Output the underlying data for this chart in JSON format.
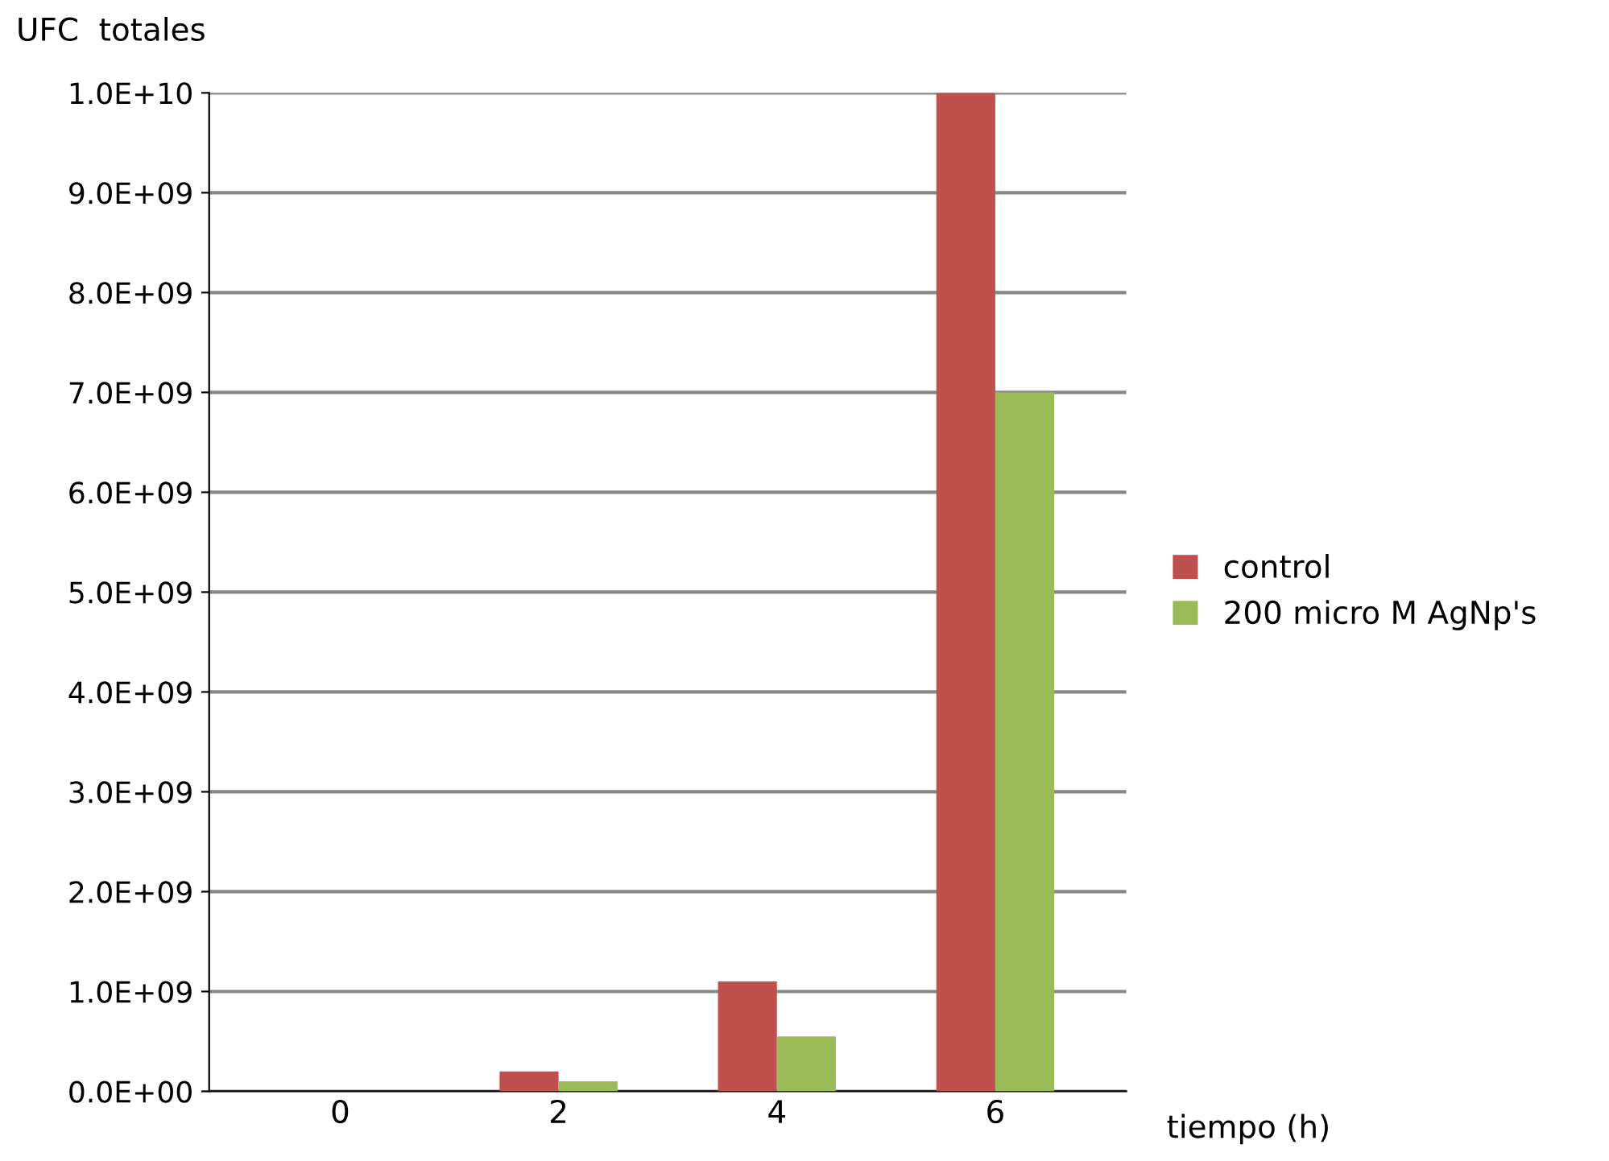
{
  "chart_data": {
    "type": "bar",
    "xlabel": "tiempo (h)",
    "ylabel": "UFC  totales",
    "categories": [
      "0",
      "2",
      "4",
      "6"
    ],
    "series": [
      {
        "name": "control",
        "color": "#c0504d",
        "values": [
          0,
          200000000.0,
          1100000000.0,
          10000000000.0
        ]
      },
      {
        "name": "200 micro M AgNp's",
        "color": "#9bbb59",
        "values": [
          0,
          100000000.0,
          550000000.0,
          7000000000.0
        ]
      }
    ],
    "ylim": [
      0,
      10000000000.0
    ],
    "yticks": [
      {
        "value": 0,
        "label": "0.0E+00"
      },
      {
        "value": 1000000000.0,
        "label": "1.0E+09"
      },
      {
        "value": 2000000000.0,
        "label": "2.0E+09"
      },
      {
        "value": 3000000000.0,
        "label": "3.0E+09"
      },
      {
        "value": 4000000000.0,
        "label": "4.0E+09"
      },
      {
        "value": 5000000000.0,
        "label": "5.0E+09"
      },
      {
        "value": 6000000000.0,
        "label": "6.0E+09"
      },
      {
        "value": 7000000000.0,
        "label": "7.0E+09"
      },
      {
        "value": 8000000000.0,
        "label": "8.0E+09"
      },
      {
        "value": 9000000000.0,
        "label": "9.0E+09"
      },
      {
        "value": 10000000000.0,
        "label": "1.0E+10"
      }
    ],
    "grid": "y",
    "legend": "right"
  }
}
